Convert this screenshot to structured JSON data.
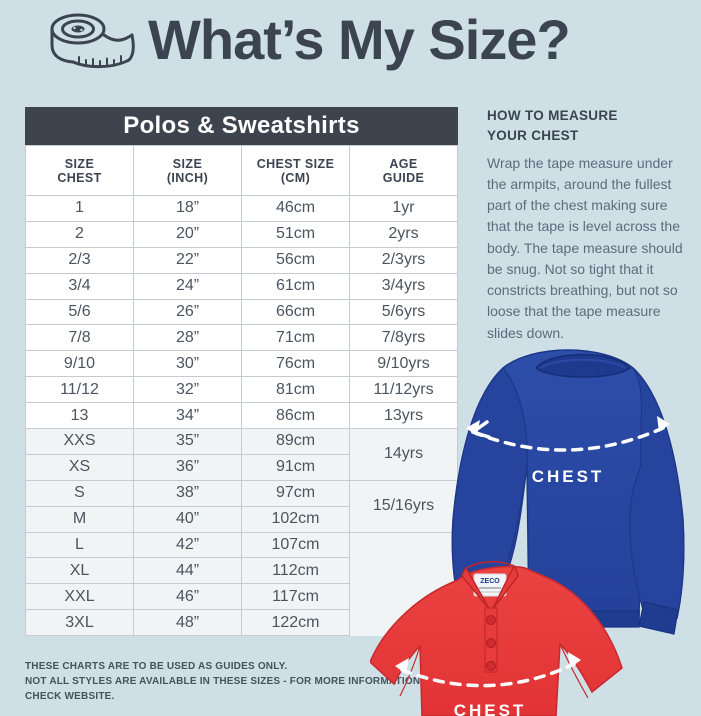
{
  "page": {
    "title": "What’s My Size?"
  },
  "table": {
    "title": "Polos & Sweatshirts",
    "headers": [
      "SIZE\nCHEST",
      "SIZE\n(INCH)",
      "CHEST SIZE\n(CM)",
      "AGE\nGUIDE"
    ],
    "rows": [
      {
        "size": "1",
        "inch": "18”",
        "cm": "46cm",
        "age": "1yr"
      },
      {
        "size": "2",
        "inch": "20”",
        "cm": "51cm",
        "age": "2yrs"
      },
      {
        "size": "2/3",
        "inch": "22”",
        "cm": "56cm",
        "age": "2/3yrs"
      },
      {
        "size": "3/4",
        "inch": "24”",
        "cm": "61cm",
        "age": "3/4yrs"
      },
      {
        "size": "5/6",
        "inch": "26”",
        "cm": "66cm",
        "age": "5/6yrs"
      },
      {
        "size": "7/8",
        "inch": "28”",
        "cm": "71cm",
        "age": "7/8yrs"
      },
      {
        "size": "9/10",
        "inch": "30”",
        "cm": "76cm",
        "age": "9/10yrs"
      },
      {
        "size": "11/12",
        "inch": "32”",
        "cm": "81cm",
        "age": "11/12yrs"
      },
      {
        "size": "13",
        "inch": "34”",
        "cm": "86cm",
        "age": "13yrs"
      },
      {
        "size": "XXS",
        "inch": "35”",
        "cm": "89cm",
        "age": "14yrs",
        "age_span": 2,
        "shade": true
      },
      {
        "size": "XS",
        "inch": "36”",
        "cm": "91cm",
        "shade": true
      },
      {
        "size": "S",
        "inch": "38”",
        "cm": "97cm",
        "age": "15/16yrs",
        "age_span": 2,
        "shade": true
      },
      {
        "size": "M",
        "inch": "40”",
        "cm": "102cm",
        "shade": true
      },
      {
        "size": "L",
        "inch": "42”",
        "cm": "107cm",
        "age": null,
        "shade": true
      },
      {
        "size": "XL",
        "inch": "44”",
        "cm": "112cm",
        "age": null,
        "shade": true
      },
      {
        "size": "XXL",
        "inch": "46”",
        "cm": "117cm",
        "age": null,
        "shade": true
      },
      {
        "size": "3XL",
        "inch": "48”",
        "cm": "122cm",
        "age": null,
        "shade": true
      }
    ]
  },
  "guide": {
    "heading": "HOW TO MEASURE\nYOUR CHEST",
    "body": "Wrap the tape measure under the armpits, around the fullest part of the chest making sure that the tape is level across the body. The tape measure should be snug. Not so tight that it constricts breathing, but not so loose that the tape measure slides down."
  },
  "footer": {
    "lines": [
      "THESE CHARTS ARE TO BE USED AS GUIDES ONLY.",
      "NOT ALL STYLES ARE AVAILABLE IN THESE SIZES - FOR MORE INFORMATION",
      "CHECK WEBSITE."
    ]
  },
  "images": {
    "sweatshirt_label": "CHEST",
    "polo_label": "CHEST",
    "polo_brand": "ZECO"
  },
  "colors": {
    "background": "#cfdfe6",
    "dark": "#3b444e",
    "table_border": "#c4cbd2",
    "row_shade": "#f1f4f5",
    "age_cell": "#eef1f3",
    "body_text": "#5a6e7b",
    "sweatshirt_blue": "#2a4aa3",
    "polo_red": "#e8393c"
  }
}
